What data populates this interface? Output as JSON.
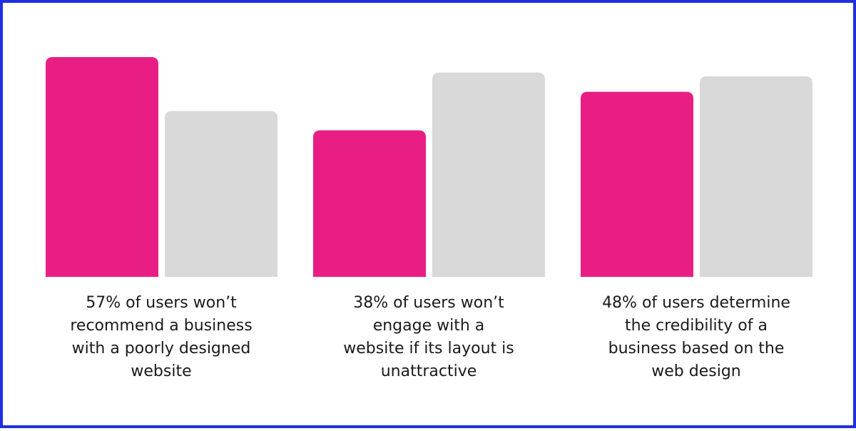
{
  "chart_data": {
    "type": "bar",
    "groups": [
      {
        "caption_lines": [
          "57% of users won’t",
          "recommend a business",
          "with a poorly designed",
          "website"
        ],
        "values": [
          57,
          43
        ]
      },
      {
        "caption_lines": [
          "38% of users won’t",
          "engage with a",
          "website if its layout is",
          "unattractive"
        ],
        "values": [
          38,
          53
        ]
      },
      {
        "caption_lines": [
          "48% of users determine",
          "the credibility of a",
          "business based on the",
          "web design"
        ],
        "values": [
          48,
          52
        ]
      }
    ],
    "ylim": [
      0,
      57
    ],
    "grid": false,
    "legend": "none",
    "colors": {
      "highlight": "#e91e85",
      "rest": "#d9d9d9",
      "frame": "#1f2fe0"
    }
  }
}
